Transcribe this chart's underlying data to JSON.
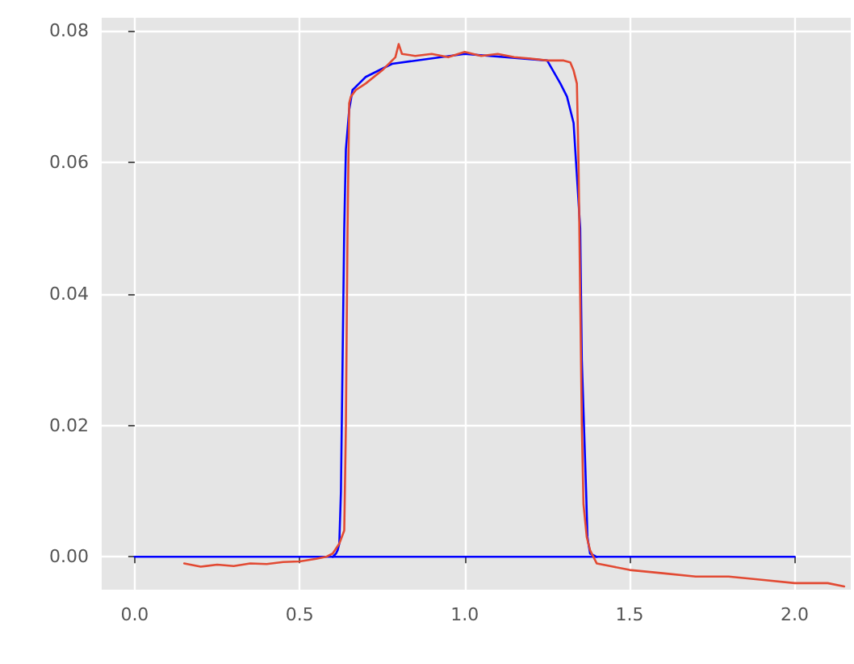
{
  "chart_data": {
    "type": "line",
    "xlim": [
      -0.1,
      2.17
    ],
    "ylim": [
      -0.005,
      0.082
    ],
    "xticks": [
      {
        "value": 0,
        "label": "0.0"
      },
      {
        "value": 0.5,
        "label": "0.5"
      },
      {
        "value": 1,
        "label": "1.0"
      },
      {
        "value": 1.5,
        "label": "1.5"
      },
      {
        "value": 2,
        "label": "2.0"
      }
    ],
    "yticks": [
      {
        "value": 0,
        "label": "0.00"
      },
      {
        "value": 0.02,
        "label": "0.02"
      },
      {
        "value": 0.04,
        "label": "0.04"
      },
      {
        "value": 0.06,
        "label": "0.06"
      },
      {
        "value": 0.08,
        "label": "0.08"
      }
    ],
    "grid": true,
    "marker": "none",
    "line_style": "solid",
    "series": [
      {
        "color": "#0000ff",
        "x": [
          0,
          2
        ],
        "values": [
          0,
          0
        ]
      },
      {
        "color": "#0000ff",
        "x": [
          0.6,
          0.61,
          0.615,
          0.62,
          0.625,
          0.63,
          0.635,
          0.64,
          0.65,
          0.66,
          0.68,
          0.7,
          0.78,
          1.0,
          1.25,
          1.29,
          1.31,
          1.33,
          1.35,
          1.355,
          1.368,
          1.372,
          1.375,
          1.38,
          1.4
        ],
        "values": [
          0,
          0.0005,
          0.001,
          0.002,
          0.01,
          0.03,
          0.05,
          0.062,
          0.068,
          0.071,
          0.072,
          0.073,
          0.075,
          0.0765,
          0.0755,
          0.072,
          0.07,
          0.066,
          0.05,
          0.03,
          0.01,
          0.003,
          0.002,
          0.0005,
          0
        ]
      },
      {
        "color": "#e24a33",
        "x": [
          0.15,
          0.2,
          0.25,
          0.3,
          0.35,
          0.4,
          0.45,
          0.5,
          0.55,
          0.58,
          0.6,
          0.62,
          0.635,
          0.64,
          0.645,
          0.65,
          0.655,
          0.67,
          0.7,
          0.75,
          0.79,
          0.8,
          0.81,
          0.85,
          0.9,
          0.95,
          1.0,
          1.05,
          1.1,
          1.15,
          1.2,
          1.25,
          1.3,
          1.32,
          1.33,
          1.34,
          1.345,
          1.35,
          1.355,
          1.36,
          1.37,
          1.38,
          1.4,
          1.45,
          1.5,
          1.6,
          1.7,
          1.8,
          1.9,
          2.0,
          2.1,
          2.15
        ],
        "values": [
          -0.001,
          -0.0015,
          -0.0012,
          -0.0014,
          -0.001,
          -0.0011,
          -0.0008,
          -0.0007,
          -0.0003,
          0,
          0.0005,
          0.002,
          0.004,
          0.02,
          0.05,
          0.069,
          0.07,
          0.071,
          0.072,
          0.074,
          0.076,
          0.078,
          0.0765,
          0.0762,
          0.0765,
          0.076,
          0.0768,
          0.0762,
          0.0765,
          0.076,
          0.0758,
          0.0755,
          0.0755,
          0.0752,
          0.074,
          0.072,
          0.06,
          0.04,
          0.02,
          0.008,
          0.003,
          0.001,
          -0.001,
          -0.0015,
          -0.002,
          -0.0025,
          -0.003,
          -0.003,
          -0.0035,
          -0.004,
          -0.004,
          -0.0045
        ]
      }
    ]
  }
}
